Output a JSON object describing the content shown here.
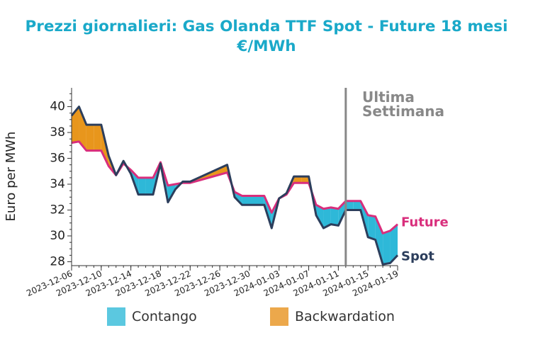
{
  "chart_data": {
    "type": "area",
    "title_line1": "Prezzi giornalieri: Gas Olanda TTF Spot - Future 18 mesi",
    "title_line2": "€/MWh",
    "ylabel": "Euro per MWh",
    "ylim": [
      27.7,
      41.4
    ],
    "y_ticks": [
      28,
      30,
      32,
      34,
      36,
      38,
      40
    ],
    "x_tick_labels": [
      "2023-12-06",
      "2023-12-10",
      "2023-12-14",
      "2023-12-18",
      "2023-12-22",
      "2023-12-26",
      "2023-12-30",
      "2024-01-03",
      "2024-01-07",
      "2024-01-11",
      "2024-01-15",
      "2024-01-19"
    ],
    "x_start": "2023-12-06",
    "x_end": "2024-01-19",
    "annotation": {
      "line1": "Ultima",
      "line2": "Settimana",
      "date": "2024-01-12",
      "color": "#888888"
    },
    "series": [
      {
        "name": "Spot",
        "color": "#2c3e5c",
        "dates": [
          "2023-12-06",
          "2023-12-07",
          "2023-12-08",
          "2023-12-09",
          "2023-12-10",
          "2023-12-11",
          "2023-12-12",
          "2023-12-13",
          "2023-12-14",
          "2023-12-15",
          "2023-12-16",
          "2023-12-17",
          "2023-12-18",
          "2023-12-19",
          "2023-12-20",
          "2023-12-21",
          "2023-12-22",
          "2023-12-27",
          "2023-12-28",
          "2023-12-29",
          "2024-01-01",
          "2024-01-02",
          "2024-01-03",
          "2024-01-04",
          "2024-01-05",
          "2024-01-06",
          "2024-01-07",
          "2024-01-08",
          "2024-01-09",
          "2024-01-10",
          "2024-01-11",
          "2024-01-12",
          "2024-01-13",
          "2024-01-14",
          "2024-01-15",
          "2024-01-16",
          "2024-01-17",
          "2024-01-18",
          "2024-01-19"
        ],
        "values": [
          39.3,
          40.0,
          38.6,
          38.6,
          38.6,
          36.2,
          34.7,
          35.8,
          34.8,
          33.2,
          33.2,
          33.2,
          35.6,
          32.6,
          33.6,
          34.2,
          34.2,
          35.5,
          33.0,
          32.4,
          32.4,
          30.6,
          32.9,
          33.3,
          34.6,
          34.6,
          34.6,
          31.6,
          30.6,
          30.9,
          30.8,
          32.0,
          32.0,
          32.0,
          29.9,
          29.7,
          27.8,
          27.9,
          28.5
        ]
      },
      {
        "name": "Future",
        "color": "#d92e7c",
        "dates": [
          "2023-12-06",
          "2023-12-07",
          "2023-12-08",
          "2023-12-09",
          "2023-12-10",
          "2023-12-11",
          "2023-12-12",
          "2023-12-13",
          "2023-12-14",
          "2023-12-15",
          "2023-12-16",
          "2023-12-17",
          "2023-12-18",
          "2023-12-19",
          "2023-12-20",
          "2023-12-21",
          "2023-12-22",
          "2023-12-27",
          "2023-12-28",
          "2023-12-29",
          "2024-01-01",
          "2024-01-02",
          "2024-01-03",
          "2024-01-04",
          "2024-01-05",
          "2024-01-06",
          "2024-01-07",
          "2024-01-08",
          "2024-01-09",
          "2024-01-10",
          "2024-01-11",
          "2024-01-12",
          "2024-01-13",
          "2024-01-14",
          "2024-01-15",
          "2024-01-16",
          "2024-01-17",
          "2024-01-18",
          "2024-01-19"
        ],
        "values": [
          37.2,
          37.3,
          36.6,
          36.6,
          36.6,
          35.4,
          34.7,
          35.6,
          35.1,
          34.5,
          34.5,
          34.5,
          35.7,
          33.9,
          34.0,
          34.1,
          34.1,
          34.9,
          33.4,
          33.1,
          33.1,
          31.8,
          32.9,
          33.2,
          34.1,
          34.1,
          34.1,
          32.4,
          32.1,
          32.2,
          32.1,
          32.7,
          32.7,
          32.7,
          31.6,
          31.5,
          30.2,
          30.4,
          30.9
        ]
      }
    ],
    "legend": {
      "contango_label": "Contango",
      "backwardation_label": "Backwardation",
      "contango_color": "#5bc8e0",
      "backwardation_color": "#eca84b",
      "contango_fill": "#2eb8d8",
      "backwardation_fill": "#e8961c"
    },
    "grid": false
  }
}
